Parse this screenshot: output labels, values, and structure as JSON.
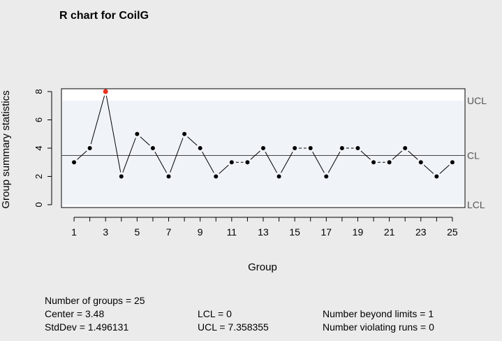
{
  "chart_data": {
    "type": "line",
    "title": "R chart for CoilG",
    "xlabel": "Group",
    "ylabel": "Group summary statistics",
    "x": [
      1,
      2,
      3,
      4,
      5,
      6,
      7,
      8,
      9,
      10,
      11,
      12,
      13,
      14,
      15,
      16,
      17,
      18,
      19,
      20,
      21,
      22,
      23,
      24,
      25
    ],
    "values": [
      3,
      4,
      8,
      2,
      5,
      4,
      2,
      5,
      4,
      2,
      3,
      3,
      4,
      2,
      4,
      4,
      2,
      4,
      4,
      3,
      3,
      4,
      3,
      2,
      3
    ],
    "xticks": [
      1,
      3,
      5,
      7,
      9,
      11,
      13,
      15,
      17,
      19,
      21,
      23,
      25
    ],
    "yticks": [
      0,
      2,
      4,
      6,
      8
    ],
    "xlim": [
      0.2,
      25.8
    ],
    "ylim": [
      -0.2,
      8.2
    ],
    "center": 3.48,
    "lcl": 0,
    "ucl": 7.358355,
    "limit_labels": {
      "ucl": "UCL",
      "cl": "CL",
      "lcl": "LCL"
    },
    "beyond_limit_points": [
      3
    ],
    "colors": {
      "background": "#ebebeb",
      "plot_area": "#ffffff",
      "control_region": "#f0f4f9",
      "point": "#000000",
      "beyond_limit_point": "#e8321e",
      "limit_label": "#555555"
    }
  },
  "stats": {
    "groups": "Number of groups = 25",
    "center": "Center = 3.48",
    "stddev": "StdDev = 1.496131",
    "lcl": "LCL = 0",
    "ucl": "UCL = 7.358355",
    "beyond": "Number beyond limits = 1",
    "violating": "Number violating runs = 0"
  }
}
